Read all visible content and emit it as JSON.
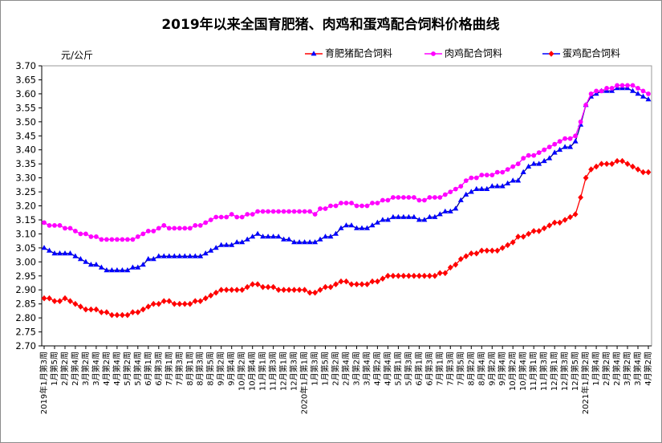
{
  "chart_data": {
    "type": "line",
    "title": "2019年以来全国育肥猪、肉鸡和蛋鸡配合饲料价格曲线",
    "xlabel": "",
    "ylabel": "元/公斤",
    "ylim": [
      2.7,
      3.7
    ],
    "grid": false,
    "legend_position": "top-right",
    "y_tick_labels": [
      "3.70",
      "3.65",
      "3.60",
      "3.55",
      "3.50",
      "3.45",
      "3.40",
      "3.35",
      "3.30",
      "3.25",
      "3.20",
      "3.15",
      "3.10",
      "3.05",
      "3.00",
      "2.95",
      "2.90",
      "2.85",
      "2.80",
      "2.75",
      "2.70"
    ],
    "x_tick_labels": [
      "2019年1月第3周",
      "1月第5周",
      "2月第2周",
      "2月第4周",
      "3月第2周",
      "3月第4周",
      "4月第2周",
      "4月第4周",
      "5月第2周",
      "5月第4周",
      "6月第1周",
      "6月第3周",
      "7月第1周",
      "7月第3周",
      "8月第1周",
      "8月第3周",
      "8月第5周",
      "9月第2周",
      "9月第4周",
      "10月第2周",
      "10月第4周",
      "11月第1周",
      "11月第3周",
      "12月第1周",
      "12月第3周",
      "2020年1月第1周",
      "1月第3周",
      "1月第5周",
      "2月第2周",
      "2月第4周",
      "3月第2周",
      "3月第4周",
      "4月第2周",
      "4月第4周",
      "5月第1周",
      "5月第3周",
      "6月第1周",
      "6月第3周",
      "7月第1周",
      "7月第3周",
      "7月第5周",
      "8月第2周",
      "8月第4周",
      "9月第2周",
      "9月第4周",
      "10月第2周",
      "10月第4周",
      "11月第1周",
      "11月第3周",
      "12月第1周",
      "12月第3周",
      "12月第5周",
      "2021年1月第2周",
      "1月第4周",
      "2月第2周",
      "2月第4周",
      "3月第2周",
      "3月第4周",
      "4月第2周"
    ],
    "series": [
      {
        "name": "育肥猪配合饲料",
        "marker": "triangle",
        "line_color": "#00008b",
        "marker_color": "#0000ff",
        "legend_line_color": "#ff0000",
        "values": [
          3.05,
          3.04,
          3.03,
          3.03,
          3.03,
          3.03,
          3.02,
          3.01,
          3.0,
          2.99,
          2.99,
          2.98,
          2.97,
          2.97,
          2.97,
          2.97,
          2.97,
          2.98,
          2.98,
          2.99,
          3.01,
          3.01,
          3.02,
          3.02,
          3.02,
          3.02,
          3.02,
          3.02,
          3.02,
          3.02,
          3.02,
          3.03,
          3.04,
          3.05,
          3.06,
          3.06,
          3.06,
          3.07,
          3.07,
          3.08,
          3.09,
          3.1,
          3.09,
          3.09,
          3.09,
          3.09,
          3.08,
          3.08,
          3.07,
          3.07,
          3.07,
          3.07,
          3.07,
          3.08,
          3.09,
          3.09,
          3.1,
          3.12,
          3.13,
          3.13,
          3.12,
          3.12,
          3.12,
          3.13,
          3.14,
          3.15,
          3.15,
          3.16,
          3.16,
          3.16,
          3.16,
          3.16,
          3.15,
          3.15,
          3.16,
          3.16,
          3.17,
          3.18,
          3.18,
          3.19,
          3.22,
          3.24,
          3.25,
          3.26,
          3.26,
          3.26,
          3.27,
          3.27,
          3.27,
          3.28,
          3.29,
          3.29,
          3.32,
          3.34,
          3.35,
          3.35,
          3.36,
          3.37,
          3.39,
          3.4,
          3.41,
          3.41,
          3.43,
          3.49,
          3.56,
          3.59,
          3.6,
          3.61,
          3.61,
          3.61,
          3.62,
          3.62,
          3.62,
          3.61,
          3.6,
          3.59,
          3.58
        ]
      },
      {
        "name": "肉鸡配合饲料",
        "marker": "circle",
        "line_color": "#ff00ff",
        "marker_color": "#ff00ff",
        "legend_line_color": "#ff00ff",
        "values": [
          3.14,
          3.13,
          3.13,
          3.13,
          3.12,
          3.12,
          3.11,
          3.1,
          3.1,
          3.09,
          3.09,
          3.08,
          3.08,
          3.08,
          3.08,
          3.08,
          3.08,
          3.08,
          3.09,
          3.1,
          3.11,
          3.11,
          3.12,
          3.13,
          3.12,
          3.12,
          3.12,
          3.12,
          3.12,
          3.13,
          3.13,
          3.14,
          3.15,
          3.16,
          3.16,
          3.16,
          3.17,
          3.16,
          3.16,
          3.17,
          3.17,
          3.18,
          3.18,
          3.18,
          3.18,
          3.18,
          3.18,
          3.18,
          3.18,
          3.18,
          3.18,
          3.18,
          3.17,
          3.19,
          3.19,
          3.2,
          3.2,
          3.21,
          3.21,
          3.21,
          3.2,
          3.2,
          3.2,
          3.21,
          3.21,
          3.22,
          3.22,
          3.23,
          3.23,
          3.23,
          3.23,
          3.23,
          3.22,
          3.22,
          3.23,
          3.23,
          3.23,
          3.24,
          3.25,
          3.26,
          3.27,
          3.29,
          3.3,
          3.3,
          3.31,
          3.31,
          3.31,
          3.32,
          3.32,
          3.33,
          3.34,
          3.35,
          3.37,
          3.38,
          3.38,
          3.39,
          3.4,
          3.41,
          3.42,
          3.43,
          3.44,
          3.44,
          3.45,
          3.5,
          3.56,
          3.6,
          3.61,
          3.61,
          3.62,
          3.62,
          3.63,
          3.63,
          3.63,
          3.63,
          3.62,
          3.61,
          3.6
        ]
      },
      {
        "name": "蛋鸡配合饲料",
        "marker": "diamond",
        "line_color": "#ff0000",
        "marker_color": "#ff0000",
        "legend_line_color": "#0000ff",
        "values": [
          2.87,
          2.87,
          2.86,
          2.86,
          2.87,
          2.86,
          2.85,
          2.84,
          2.83,
          2.83,
          2.83,
          2.82,
          2.82,
          2.81,
          2.81,
          2.81,
          2.81,
          2.82,
          2.82,
          2.83,
          2.84,
          2.85,
          2.85,
          2.86,
          2.86,
          2.85,
          2.85,
          2.85,
          2.85,
          2.86,
          2.86,
          2.87,
          2.88,
          2.89,
          2.9,
          2.9,
          2.9,
          2.9,
          2.9,
          2.91,
          2.92,
          2.92,
          2.91,
          2.91,
          2.91,
          2.9,
          2.9,
          2.9,
          2.9,
          2.9,
          2.9,
          2.89,
          2.89,
          2.9,
          2.91,
          2.91,
          2.92,
          2.93,
          2.93,
          2.92,
          2.92,
          2.92,
          2.92,
          2.93,
          2.93,
          2.94,
          2.95,
          2.95,
          2.95,
          2.95,
          2.95,
          2.95,
          2.95,
          2.95,
          2.95,
          2.95,
          2.96,
          2.96,
          2.98,
          2.99,
          3.01,
          3.02,
          3.03,
          3.03,
          3.04,
          3.04,
          3.04,
          3.04,
          3.05,
          3.06,
          3.07,
          3.09,
          3.09,
          3.1,
          3.11,
          3.11,
          3.12,
          3.13,
          3.14,
          3.14,
          3.15,
          3.16,
          3.17,
          3.23,
          3.3,
          3.33,
          3.34,
          3.35,
          3.35,
          3.35,
          3.36,
          3.36,
          3.35,
          3.34,
          3.33,
          3.32,
          3.32
        ]
      }
    ]
  }
}
